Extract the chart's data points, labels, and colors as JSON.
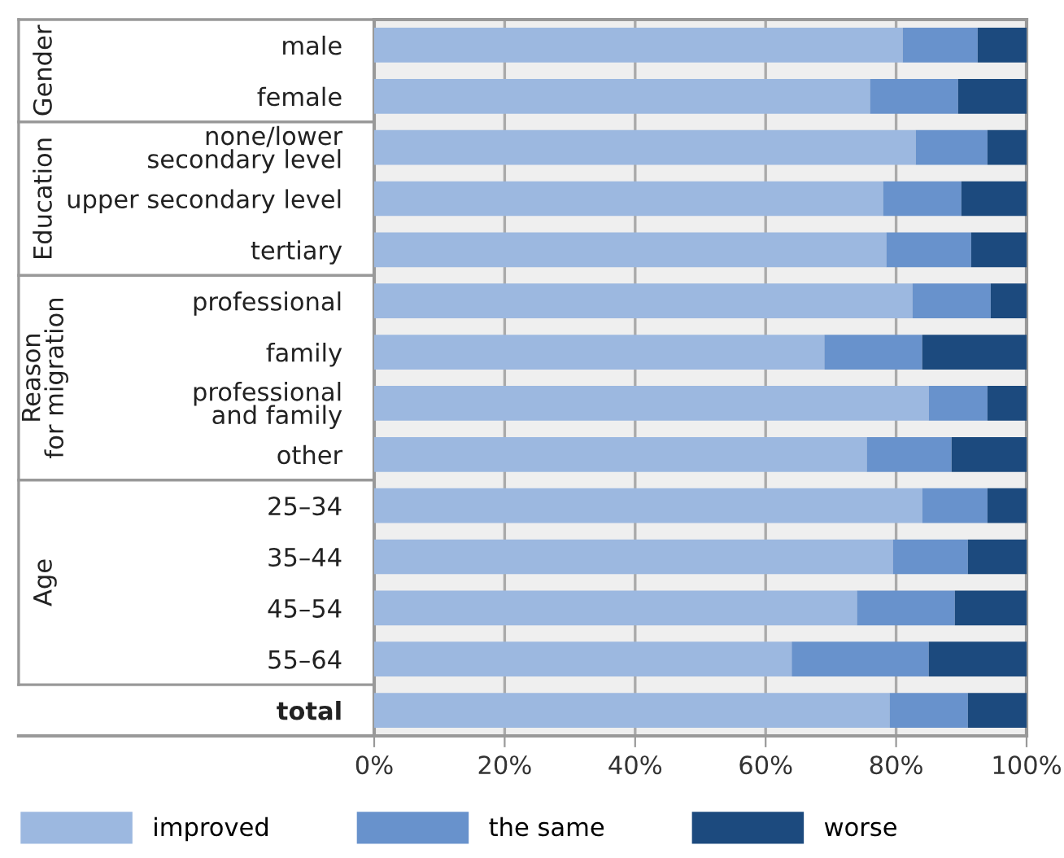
{
  "chart_data": {
    "type": "bar",
    "orientation": "horizontal",
    "stacked": true,
    "categories": [
      "male",
      "female",
      "none/lower\nsecondary level",
      "upper secondary level",
      "tertiary",
      "professional",
      "family",
      "professional\nand family",
      "other",
      "25–34",
      "35–44",
      "45–54",
      "55–64",
      "total"
    ],
    "series": [
      {
        "name": "improved",
        "color": "#9cb8e0",
        "values": [
          81,
          76,
          83,
          78,
          78.5,
          82.5,
          69,
          85,
          75.5,
          84,
          79.5,
          74,
          64,
          79
        ]
      },
      {
        "name": "the same",
        "color": "#6892cc",
        "values": [
          11.5,
          13.5,
          11,
          12,
          13,
          12,
          15,
          9,
          13,
          10,
          11.5,
          15,
          21,
          12
        ]
      },
      {
        "name": "worse",
        "color": "#1c4a7e",
        "values": [
          7.5,
          10.5,
          6,
          10,
          8.5,
          5.5,
          16,
          6,
          11.5,
          6,
          9,
          11,
          15,
          9
        ]
      }
    ],
    "xlim": [
      0,
      100
    ],
    "xticks": [
      {
        "value": 0,
        "label": "0%"
      },
      {
        "value": 20,
        "label": "20%"
      },
      {
        "value": 40,
        "label": "40%"
      },
      {
        "value": 60,
        "label": "60%"
      },
      {
        "value": 80,
        "label": "80%"
      },
      {
        "value": 100,
        "label": "100%"
      }
    ],
    "annotations": [
      "Gender",
      "Education",
      "Reason\nfor migration",
      "Age"
    ],
    "grid": "x",
    "legend": "bottom"
  }
}
